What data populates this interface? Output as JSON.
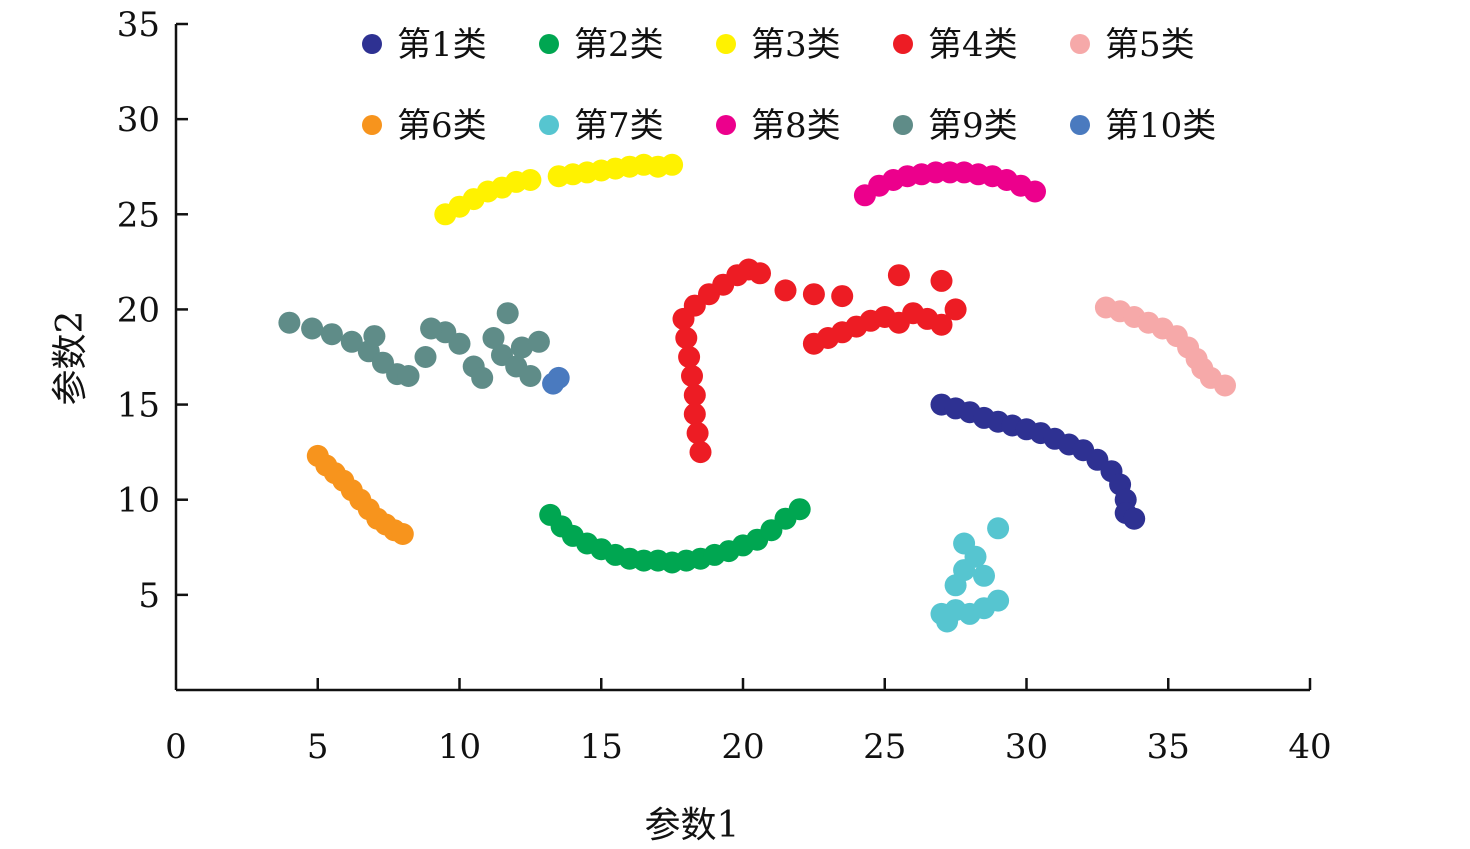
{
  "chart_data": {
    "type": "scatter",
    "title": "",
    "xlabel": "参数1",
    "ylabel": "参数2",
    "xlim": [
      0,
      40
    ],
    "ylim": [
      0,
      35
    ],
    "xticks": [
      0,
      5,
      10,
      15,
      20,
      25,
      30,
      35,
      40
    ],
    "yticks": [
      5,
      10,
      15,
      20,
      25,
      30,
      35
    ],
    "xtick_labels": [
      "0",
      "5",
      "10",
      "15",
      "20",
      "25",
      "30",
      "35",
      "40"
    ],
    "ytick_labels": [
      "5",
      "10",
      "15",
      "20",
      "25",
      "30",
      "35"
    ],
    "grid": false,
    "legend": "top, 2 rows × 5 columns",
    "series": [
      {
        "name": "第1类",
        "color": "#2e3192",
        "points": [
          [
            27.0,
            15.0
          ],
          [
            27.5,
            14.8
          ],
          [
            28.0,
            14.6
          ],
          [
            28.5,
            14.3
          ],
          [
            29.0,
            14.1
          ],
          [
            29.5,
            13.9
          ],
          [
            30.0,
            13.7
          ],
          [
            30.5,
            13.5
          ],
          [
            31.0,
            13.2
          ],
          [
            31.5,
            12.9
          ],
          [
            32.0,
            12.6
          ],
          [
            32.5,
            12.1
          ],
          [
            33.0,
            11.5
          ],
          [
            33.3,
            10.8
          ],
          [
            33.5,
            10.0
          ],
          [
            33.5,
            9.3
          ],
          [
            33.8,
            9.0
          ]
        ]
      },
      {
        "name": "第2类",
        "color": "#00a651",
        "points": [
          [
            13.2,
            9.2
          ],
          [
            13.6,
            8.6
          ],
          [
            14.0,
            8.1
          ],
          [
            14.5,
            7.7
          ],
          [
            15.0,
            7.4
          ],
          [
            15.5,
            7.1
          ],
          [
            16.0,
            6.9
          ],
          [
            16.5,
            6.8
          ],
          [
            17.0,
            6.8
          ],
          [
            17.5,
            6.7
          ],
          [
            18.0,
            6.8
          ],
          [
            18.5,
            6.9
          ],
          [
            19.0,
            7.1
          ],
          [
            19.5,
            7.3
          ],
          [
            20.0,
            7.6
          ],
          [
            20.5,
            7.9
          ],
          [
            21.0,
            8.4
          ],
          [
            21.5,
            9.0
          ],
          [
            22.0,
            9.5
          ]
        ]
      },
      {
        "name": "第3类",
        "color": "#fff200",
        "points": [
          [
            9.5,
            25.0
          ],
          [
            10.0,
            25.4
          ],
          [
            10.5,
            25.8
          ],
          [
            11.0,
            26.2
          ],
          [
            11.5,
            26.4
          ],
          [
            12.0,
            26.7
          ],
          [
            12.5,
            26.8
          ],
          [
            13.5,
            27.0
          ],
          [
            14.0,
            27.1
          ],
          [
            14.5,
            27.2
          ],
          [
            15.0,
            27.3
          ],
          [
            15.5,
            27.4
          ],
          [
            16.0,
            27.5
          ],
          [
            16.5,
            27.6
          ],
          [
            17.0,
            27.5
          ],
          [
            17.5,
            27.6
          ]
        ]
      },
      {
        "name": "第4类",
        "color": "#ed1c24",
        "points": [
          [
            18.5,
            12.5
          ],
          [
            18.4,
            13.5
          ],
          [
            18.3,
            14.5
          ],
          [
            18.3,
            15.5
          ],
          [
            18.2,
            16.5
          ],
          [
            18.1,
            17.5
          ],
          [
            18.0,
            18.5
          ],
          [
            17.9,
            19.5
          ],
          [
            18.3,
            20.2
          ],
          [
            18.8,
            20.8
          ],
          [
            19.3,
            21.3
          ],
          [
            19.8,
            21.8
          ],
          [
            20.2,
            22.1
          ],
          [
            20.6,
            21.9
          ],
          [
            21.5,
            21.0
          ],
          [
            22.5,
            20.8
          ],
          [
            23.5,
            20.7
          ],
          [
            22.5,
            18.2
          ],
          [
            23.0,
            18.5
          ],
          [
            23.5,
            18.8
          ],
          [
            24.0,
            19.1
          ],
          [
            24.5,
            19.4
          ],
          [
            25.0,
            19.6
          ],
          [
            25.5,
            19.3
          ],
          [
            26.0,
            19.8
          ],
          [
            26.5,
            19.5
          ],
          [
            27.0,
            19.2
          ],
          [
            25.5,
            21.8
          ],
          [
            27.0,
            21.5
          ],
          [
            27.5,
            20.0
          ]
        ]
      },
      {
        "name": "第5类",
        "color": "#f6a9a9",
        "points": [
          [
            32.8,
            20.1
          ],
          [
            33.3,
            19.9
          ],
          [
            33.8,
            19.6
          ],
          [
            34.3,
            19.3
          ],
          [
            34.8,
            19.0
          ],
          [
            35.3,
            18.6
          ],
          [
            35.7,
            18.0
          ],
          [
            36.0,
            17.4
          ],
          [
            36.2,
            16.9
          ],
          [
            36.5,
            16.4
          ],
          [
            37.0,
            16.0
          ]
        ]
      },
      {
        "name": "第6类",
        "color": "#f7941d",
        "points": [
          [
            5.0,
            12.3
          ],
          [
            5.3,
            11.8
          ],
          [
            5.6,
            11.4
          ],
          [
            5.9,
            11.0
          ],
          [
            6.2,
            10.5
          ],
          [
            6.5,
            10.0
          ],
          [
            6.8,
            9.5
          ],
          [
            7.1,
            9.0
          ],
          [
            7.4,
            8.7
          ],
          [
            7.7,
            8.4
          ],
          [
            8.0,
            8.2
          ]
        ]
      },
      {
        "name": "第7类",
        "color": "#56c5d0",
        "points": [
          [
            27.0,
            4.0
          ],
          [
            27.5,
            4.2
          ],
          [
            28.0,
            4.0
          ],
          [
            28.5,
            4.3
          ],
          [
            29.0,
            4.7
          ],
          [
            27.5,
            5.5
          ],
          [
            27.8,
            6.3
          ],
          [
            28.2,
            7.0
          ],
          [
            27.8,
            7.7
          ],
          [
            28.5,
            6.0
          ],
          [
            29.0,
            8.5
          ],
          [
            27.2,
            3.6
          ]
        ]
      },
      {
        "name": "第8类",
        "color": "#ec008c",
        "points": [
          [
            24.3,
            26.0
          ],
          [
            24.8,
            26.5
          ],
          [
            25.3,
            26.8
          ],
          [
            25.8,
            27.0
          ],
          [
            26.3,
            27.1
          ],
          [
            26.8,
            27.2
          ],
          [
            27.3,
            27.2
          ],
          [
            27.8,
            27.2
          ],
          [
            28.3,
            27.1
          ],
          [
            28.8,
            27.0
          ],
          [
            29.3,
            26.8
          ],
          [
            29.8,
            26.5
          ],
          [
            30.3,
            26.2
          ]
        ]
      },
      {
        "name": "第9类",
        "color": "#5f8c88",
        "points": [
          [
            4.0,
            19.3
          ],
          [
            4.8,
            19.0
          ],
          [
            5.5,
            18.7
          ],
          [
            6.2,
            18.3
          ],
          [
            6.8,
            17.8
          ],
          [
            7.3,
            17.2
          ],
          [
            7.8,
            16.6
          ],
          [
            8.2,
            16.5
          ],
          [
            8.8,
            17.5
          ],
          [
            9.5,
            18.8
          ],
          [
            10.0,
            18.2
          ],
          [
            10.5,
            17.0
          ],
          [
            10.8,
            16.4
          ],
          [
            11.2,
            18.5
          ],
          [
            11.5,
            17.6
          ],
          [
            11.7,
            19.8
          ],
          [
            12.0,
            17.0
          ],
          [
            12.2,
            18.0
          ],
          [
            12.5,
            16.5
          ],
          [
            12.8,
            18.3
          ],
          [
            7.0,
            18.6
          ],
          [
            9.0,
            19.0
          ]
        ]
      },
      {
        "name": "第10类",
        "color": "#4a7abf",
        "points": [
          [
            13.3,
            16.1
          ],
          [
            13.5,
            16.4
          ]
        ]
      }
    ]
  }
}
